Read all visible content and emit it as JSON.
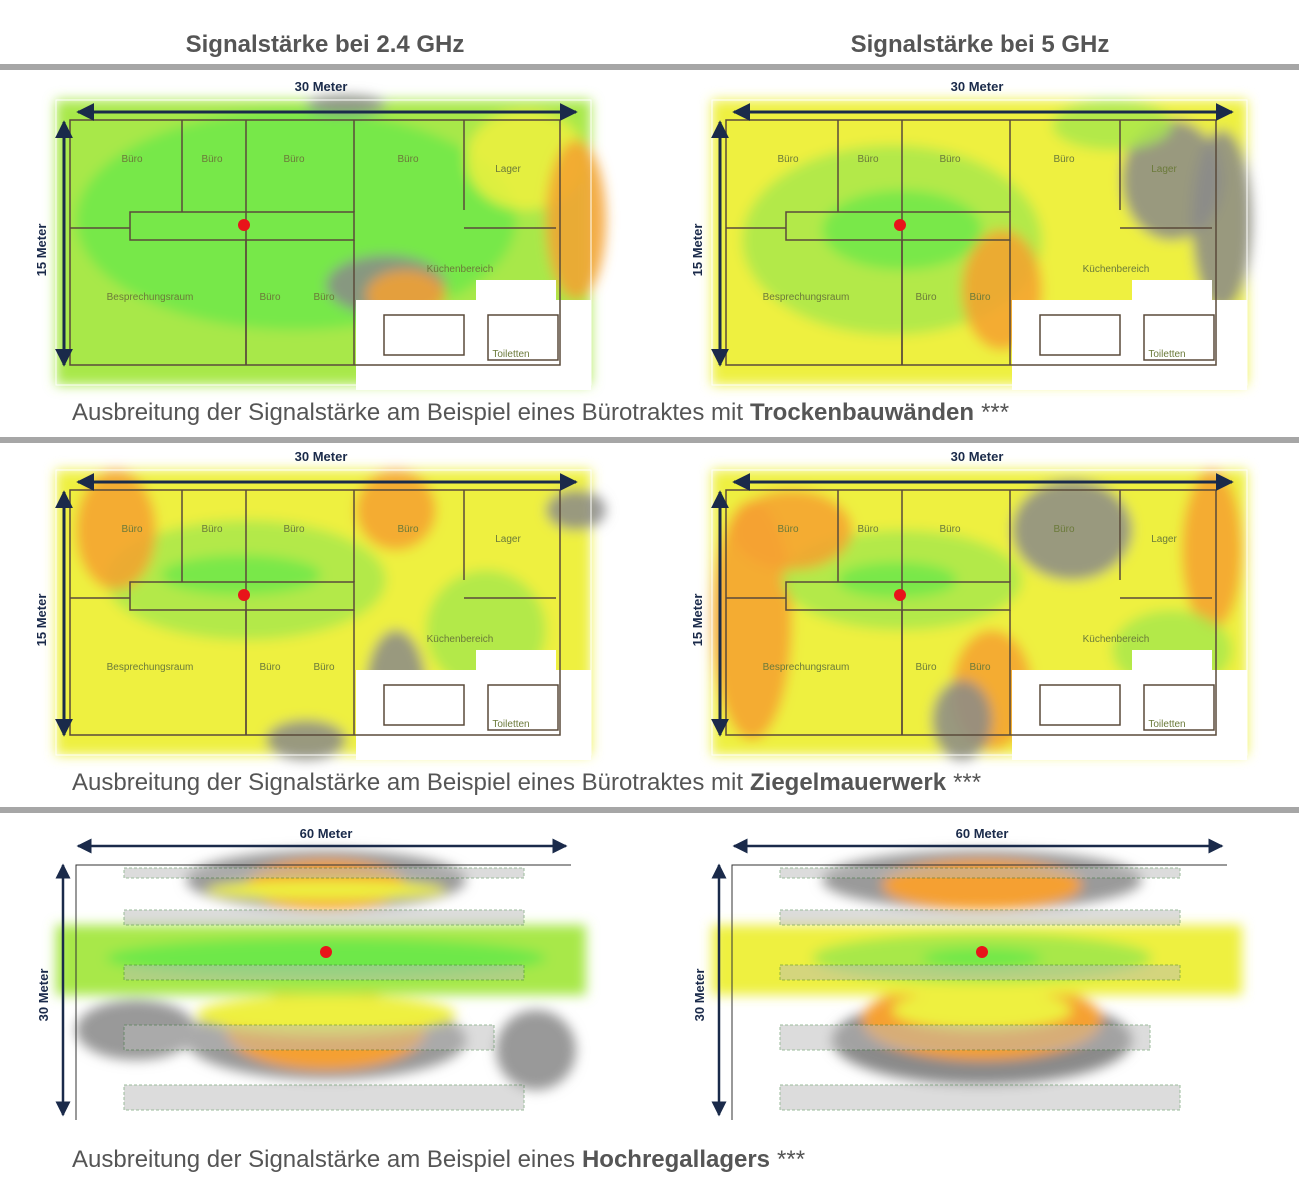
{
  "headers": [
    "Signalstärke bei 2.4 GHz",
    "Signalstärke bei 5 GHz"
  ],
  "sections": [
    {
      "caption": {
        "text": "Ausbreitung der Signalstärke am Beispiel eines Bürotraktes mit",
        "bold": "Trockenbauwänden",
        "suffix": "***"
      },
      "maps": [
        {
          "width": "30 Meter",
          "height": "15 Meter",
          "rooms": [
            "Büro",
            "Büro",
            "Büro",
            "Büro",
            "Lager",
            "Besprechungsraum",
            "Büro",
            "Büro",
            "Küchenbereich",
            "Toiletten"
          ]
        },
        {
          "width": "30 Meter",
          "height": "15 Meter",
          "rooms": [
            "Büro",
            "Büro",
            "Büro",
            "Büro",
            "Lager",
            "Besprechungsraum",
            "Büro",
            "Büro",
            "Küchenbereich",
            "Toiletten"
          ]
        }
      ]
    },
    {
      "caption": {
        "text": "Ausbreitung der Signalstärke am Beispiel eines Bürotraktes mit",
        "bold": "Ziegelmauerwerk",
        "suffix": "***"
      },
      "maps": [
        {
          "width": "30 Meter",
          "height": "15 Meter",
          "rooms": [
            "Büro",
            "Büro",
            "Büro",
            "Büro",
            "Lager",
            "Besprechungsraum",
            "Büro",
            "Büro",
            "Küchenbereich",
            "Toiletten"
          ]
        },
        {
          "width": "30 Meter",
          "height": "15 Meter",
          "rooms": [
            "Büro",
            "Büro",
            "Büro",
            "Büro",
            "Lager",
            "Besprechungsraum",
            "Büro",
            "Büro",
            "Küchenbereich",
            "Toiletten"
          ]
        }
      ]
    },
    {
      "caption": {
        "text": "Ausbreitung der Signalstärke am Beispiel eines",
        "bold": "Hochregallagers",
        "suffix": "***"
      },
      "maps": [
        {
          "width": "60 Meter",
          "height": "30 Meter"
        },
        {
          "width": "60 Meter",
          "height": "30 Meter"
        }
      ]
    }
  ]
}
